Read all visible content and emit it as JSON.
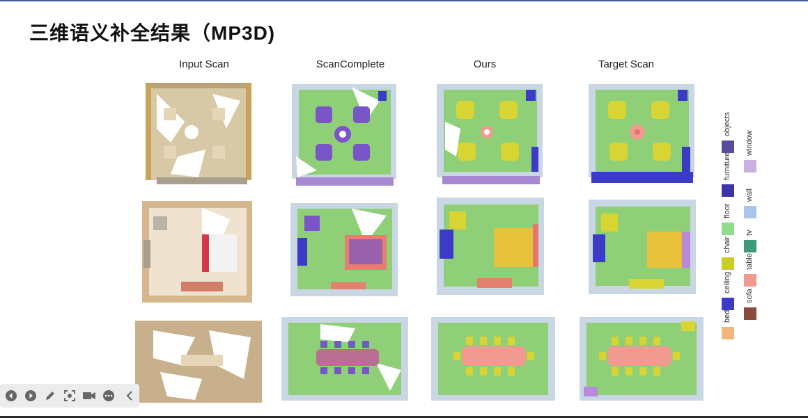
{
  "slide": {
    "title": "三维语义补全结果（MP3D)"
  },
  "columns": [
    "Input Scan",
    "ScanComplete",
    "Ours",
    "Target Scan"
  ],
  "legend": [
    {
      "label": "bed",
      "color": "#f3b67a"
    },
    {
      "label": "ceiling",
      "color": "#3b3bc8"
    },
    {
      "label": "chair",
      "color": "#c9cc2a"
    },
    {
      "label": "floor",
      "color": "#8fdc8a"
    },
    {
      "label": "furniture",
      "color": "#3c35a8"
    },
    {
      "label": "objects",
      "color": "#5b4b9c"
    },
    {
      "label": "sofa",
      "color": "#8a4a3c"
    },
    {
      "label": "table",
      "color": "#f19a90"
    },
    {
      "label": "tv",
      "color": "#3f9a7a"
    },
    {
      "label": "wall",
      "color": "#a9c6e8"
    },
    {
      "label": "window",
      "color": "#c8b2dd"
    }
  ],
  "toolbar": {
    "icons": [
      "previous-icon",
      "next-icon",
      "pen-icon",
      "screenshot-icon",
      "camera-icon",
      "more-icon",
      "collapse-icon"
    ]
  }
}
